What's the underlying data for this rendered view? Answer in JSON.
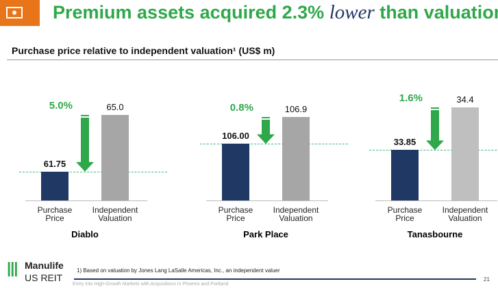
{
  "header": {
    "title_parts": [
      "Premium assets acquired 2.3% ",
      "lower",
      " than valuation"
    ],
    "subtitle": "Purchase price relative to independent valuation¹ (US$ m)"
  },
  "chart_data": [
    {
      "type": "bar",
      "title": "Diablo",
      "annotation": "5.0%",
      "categories": [
        "Purchase Price",
        "Independent Valuation"
      ],
      "values": [
        61.75,
        65.0
      ],
      "value_labels": [
        "61.75",
        "65.0"
      ],
      "colors": [
        "#1f3864",
        "#a6a6a6"
      ],
      "ylim": [
        60.1,
        66.1
      ]
    },
    {
      "type": "bar",
      "title": "Park Place",
      "annotation": "0.8%",
      "categories": [
        "Purchase Price",
        "Independent Valuation"
      ],
      "values": [
        106.0,
        106.9
      ],
      "value_labels": [
        "106.00",
        "106.9"
      ],
      "colors": [
        "#1f3864",
        "#a6a6a6"
      ],
      "ylim": [
        104.1,
        107.6
      ]
    },
    {
      "type": "bar",
      "title": "Tanasbourne",
      "annotation": "1.6%",
      "categories": [
        "Purchase Price",
        "Independent Valuation"
      ],
      "values": [
        33.85,
        34.4
      ],
      "value_labels": [
        "33.85",
        "34.4"
      ],
      "colors": [
        "#1f3864",
        "#bfbfbf"
      ],
      "ylim": [
        33.2,
        34.55
      ]
    }
  ],
  "footer": {
    "logo_top": "Manulife",
    "logo_bottom": "US REIT",
    "footnote": "1) Based on valuation by Jones Lang LaSalle Americas, Inc., an independent valuer",
    "caption": "Entry into High-Growth Markets with Acquisitions in Phoenix and Portland",
    "page": "21"
  }
}
